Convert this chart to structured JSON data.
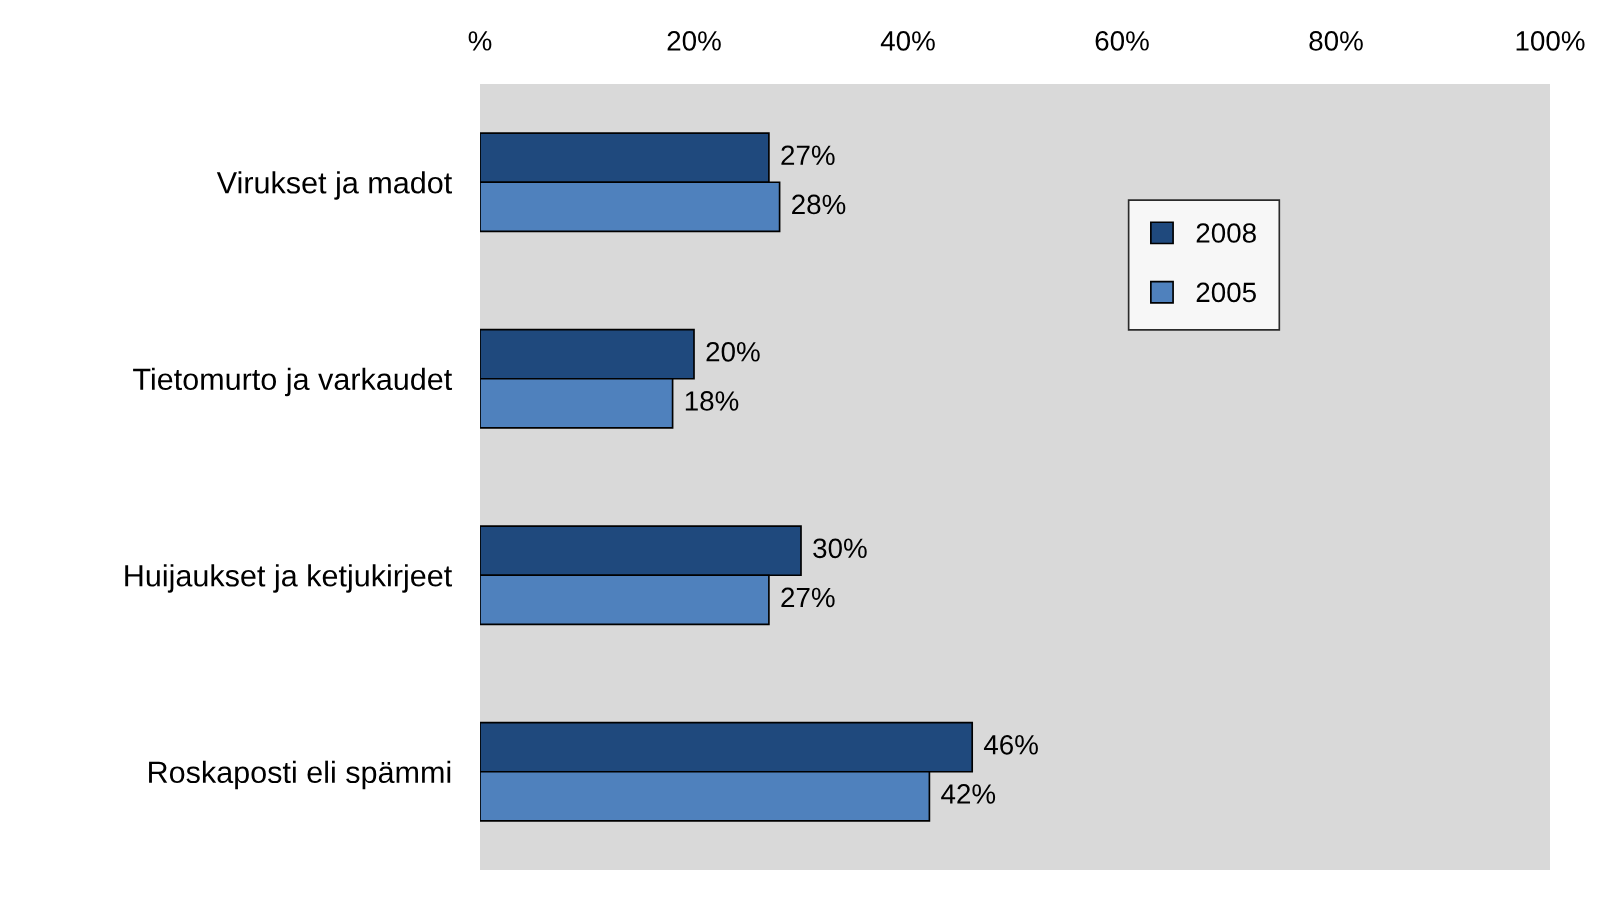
{
  "chart_data": {
    "type": "bar",
    "orientation": "horizontal",
    "categories": [
      "Virukset ja madot",
      "Tietomurto ja varkaudet",
      "Huijaukset ja ketjukirjeet",
      "Roskaposti eli spämmi"
    ],
    "series": [
      {
        "name": "2008",
        "color": "#1f497d",
        "values": [
          27,
          20,
          30,
          46
        ],
        "value_labels": [
          "27%",
          "20%",
          "30%",
          "46%"
        ]
      },
      {
        "name": "2005",
        "color": "#4f81bd",
        "values": [
          28,
          18,
          27,
          42
        ],
        "value_labels": [
          "28%",
          "18%",
          "27%",
          "42%"
        ]
      }
    ],
    "xlim": [
      0,
      100
    ],
    "xticks": [
      {
        "value": 0,
        "label": "%"
      },
      {
        "value": 20,
        "label": "20%"
      },
      {
        "value": 40,
        "label": "40%"
      },
      {
        "value": 60,
        "label": "60%"
      },
      {
        "value": 80,
        "label": "80%"
      },
      {
        "value": 100,
        "label": "100%"
      }
    ],
    "grid": false,
    "legend": "top right"
  }
}
